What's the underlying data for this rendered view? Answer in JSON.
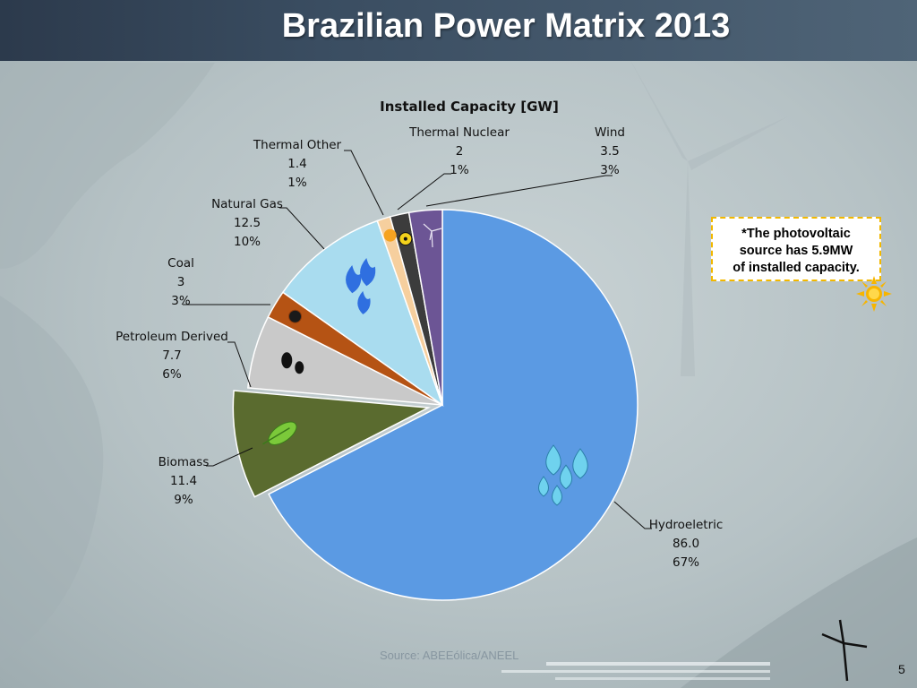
{
  "slide": {
    "title": "Brazilian Power Matrix 2013",
    "source": "Source: ABEEólica/ANEEL",
    "page_number": "5"
  },
  "note": {
    "lines": [
      "*The photovoltaic",
      "source has 5.9MW",
      "of installed capacity."
    ]
  },
  "chart_data": {
    "type": "pie",
    "title": "Installed Capacity [GW]",
    "unit": "GW",
    "slices": [
      {
        "name": "Hydroeletric",
        "value": "86.0",
        "percent": "67%",
        "color": "#5b9ae3",
        "icon": "water-drops-icon"
      },
      {
        "name": "Biomass",
        "value": "11.4",
        "percent": "9%",
        "color": "#5a6b2f",
        "icon": "leaf-icon"
      },
      {
        "name": "Petroleum Derived",
        "value": "7.7",
        "percent": "6%",
        "color": "#c9c9c9",
        "icon": "oil-drops-icon"
      },
      {
        "name": "Coal",
        "value": "3",
        "percent": "3%",
        "color": "#b55314",
        "icon": "coal-icon"
      },
      {
        "name": "Natural Gas",
        "value": "12.5",
        "percent": "10%",
        "color": "#a9dcef",
        "icon": "flame-icon"
      },
      {
        "name": "Thermal Other",
        "value": "1.4",
        "percent": "1%",
        "color": "#f6cf9e",
        "icon": "thermal-icon"
      },
      {
        "name": "Thermal Nuclear",
        "value": "2",
        "percent": "1%",
        "color": "#3c3c3c",
        "icon": "radiation-icon"
      },
      {
        "name": "Wind",
        "value": "3.5",
        "percent": "3%",
        "color": "#6c5595",
        "icon": "wind-turbine-icon"
      }
    ]
  }
}
